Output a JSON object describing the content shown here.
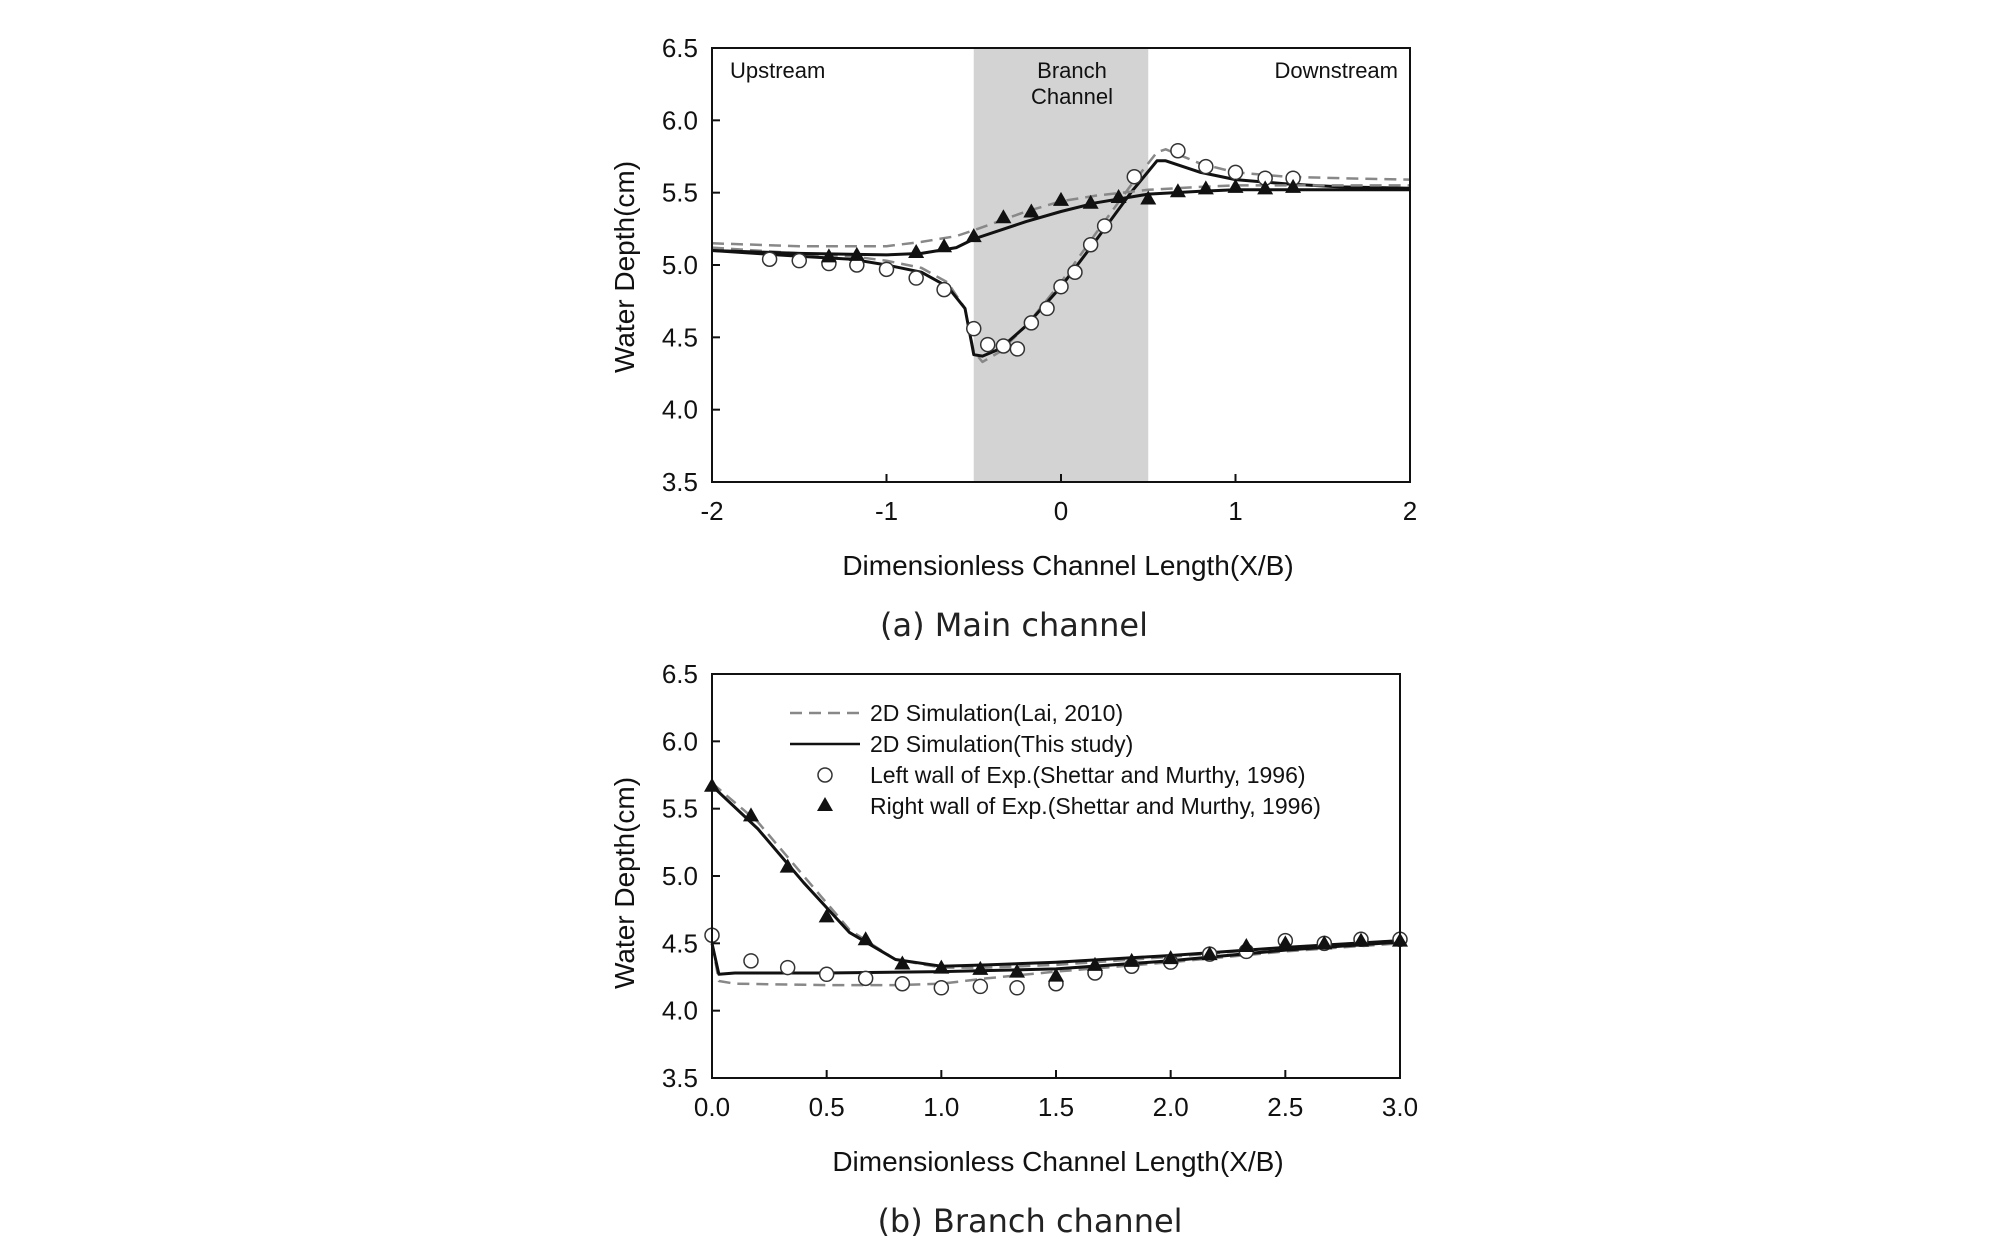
{
  "chart_data": [
    {
      "type": "line",
      "caption": "(a) Main channel",
      "xlabel": "Dimensionless Channel Length(X/B)",
      "ylabel": "Water Depth(cm)",
      "xlim": [
        -2,
        2
      ],
      "ylim": [
        3.5,
        6.5
      ],
      "xticks": [
        "-2",
        "-1",
        "0",
        "1",
        "2"
      ],
      "yticks": [
        "3.5",
        "4.0",
        "4.5",
        "5.0",
        "5.5",
        "6.0",
        "6.5"
      ],
      "shaded_region": {
        "x_range": [
          -0.5,
          0.5
        ],
        "label_line1": "Branch",
        "label_line2": "Channel",
        "color": "#d3d3d3"
      },
      "region_labels": {
        "upstream": "Upstream",
        "downstream": "Downstream"
      },
      "series": [
        {
          "name": "2D Simulation(Lai, 2010) - left wall",
          "style": "dashed",
          "color": "#888888",
          "x": [
            -2,
            -1.5,
            -1.2,
            -1.0,
            -0.8,
            -0.65,
            -0.55,
            -0.5,
            -0.45,
            -0.35,
            -0.2,
            0,
            0.2,
            0.4,
            0.55,
            0.6,
            0.8,
            1.0,
            1.3,
            1.6,
            2
          ],
          "y": [
            5.12,
            5.08,
            5.06,
            5.03,
            4.98,
            4.88,
            4.7,
            4.4,
            4.33,
            4.4,
            4.58,
            4.88,
            5.22,
            5.55,
            5.78,
            5.8,
            5.7,
            5.64,
            5.61,
            5.6,
            5.59
          ]
        },
        {
          "name": "2D Simulation(This study) - left wall",
          "style": "solid",
          "color": "#111111",
          "x": [
            -2,
            -1.5,
            -1.2,
            -1.0,
            -0.8,
            -0.65,
            -0.55,
            -0.5,
            -0.45,
            -0.35,
            -0.2,
            0,
            0.2,
            0.4,
            0.55,
            0.6,
            0.8,
            1.0,
            1.3,
            1.6,
            2
          ],
          "y": [
            5.1,
            5.06,
            5.04,
            5.0,
            4.95,
            4.85,
            4.7,
            4.38,
            4.37,
            4.42,
            4.58,
            4.85,
            5.17,
            5.5,
            5.72,
            5.72,
            5.64,
            5.59,
            5.56,
            5.54,
            5.53
          ]
        },
        {
          "name": "2D Simulation(Lai, 2010) - right wall",
          "style": "dashed",
          "color": "#888888",
          "x": [
            -2,
            -1.5,
            -1.0,
            -0.8,
            -0.6,
            -0.5,
            -0.2,
            0,
            0.2,
            0.5,
            0.8,
            1.0,
            1.5,
            2
          ],
          "y": [
            5.15,
            5.13,
            5.13,
            5.16,
            5.2,
            5.24,
            5.37,
            5.44,
            5.48,
            5.52,
            5.54,
            5.55,
            5.55,
            5.55
          ]
        },
        {
          "name": "2D Simulation(This study) - right wall",
          "style": "solid",
          "color": "#111111",
          "x": [
            -2,
            -1.5,
            -1.0,
            -0.8,
            -0.6,
            -0.5,
            -0.2,
            0,
            0.2,
            0.5,
            0.8,
            1.0,
            1.5,
            2
          ],
          "y": [
            5.1,
            5.08,
            5.07,
            5.08,
            5.12,
            5.18,
            5.3,
            5.37,
            5.43,
            5.49,
            5.51,
            5.52,
            5.52,
            5.52
          ]
        },
        {
          "name": "Left wall of Exp.(Shettar and Murthy, 1996)",
          "marker": "open-circle",
          "x": [
            -1.67,
            -1.5,
            -1.33,
            -1.17,
            -1.0,
            -0.83,
            -0.67,
            -0.5,
            -0.42,
            -0.33,
            -0.25,
            -0.17,
            -0.08,
            0,
            0.08,
            0.17,
            0.25,
            0.42,
            0.67,
            0.83,
            1.0,
            1.17,
            1.33
          ],
          "y": [
            5.04,
            5.03,
            5.01,
            5.0,
            4.97,
            4.91,
            4.83,
            4.56,
            4.45,
            4.44,
            4.42,
            4.6,
            4.7,
            4.85,
            4.95,
            5.14,
            5.27,
            5.61,
            5.79,
            5.68,
            5.64,
            5.6,
            5.6
          ]
        },
        {
          "name": "Right wall of Exp.(Shettar and Murthy, 1996)",
          "marker": "filled-triangle",
          "x": [
            -1.33,
            -1.17,
            -0.83,
            -0.67,
            -0.5,
            -0.33,
            -0.17,
            0,
            0.17,
            0.33,
            0.5,
            0.67,
            0.83,
            1.0,
            1.17,
            1.33
          ],
          "y": [
            5.06,
            5.07,
            5.09,
            5.13,
            5.2,
            5.33,
            5.37,
            5.45,
            5.43,
            5.47,
            5.46,
            5.51,
            5.53,
            5.54,
            5.53,
            5.54
          ]
        }
      ]
    },
    {
      "type": "line",
      "caption": "(b) Branch channel",
      "xlabel": "Dimensionless Channel Length(X/B)",
      "ylabel": "Water Depth(cm)",
      "xlim": [
        0,
        3
      ],
      "ylim": [
        3.5,
        6.5
      ],
      "xticks": [
        "0.0",
        "0.5",
        "1.0",
        "1.5",
        "2.0",
        "2.5",
        "3.0"
      ],
      "yticks": [
        "3.5",
        "4.0",
        "4.5",
        "5.0",
        "5.5",
        "6.0",
        "6.5"
      ],
      "legend": {
        "position": "top-left",
        "entries": [
          "2D Simulation(Lai, 2010)",
          "2D Simulation(This study)",
          "Left wall of Exp.(Shettar and Murthy, 1996)",
          "Right wall of Exp.(Shettar and Murthy, 1996)"
        ]
      },
      "series": [
        {
          "name": "2D Simulation(Lai, 2010) - left wall",
          "style": "dashed",
          "color": "#888888",
          "x": [
            0,
            0.03,
            0.1,
            0.5,
            0.8,
            1.0,
            1.2,
            1.5,
            2.0,
            2.5,
            3.0
          ],
          "y": [
            4.5,
            4.22,
            4.2,
            4.19,
            4.19,
            4.2,
            4.24,
            4.29,
            4.36,
            4.44,
            4.5
          ]
        },
        {
          "name": "2D Simulation(This study) - left wall",
          "style": "solid",
          "color": "#111111",
          "x": [
            0,
            0.03,
            0.1,
            0.5,
            1.0,
            1.5,
            2.0,
            2.5,
            3.0
          ],
          "y": [
            4.5,
            4.27,
            4.28,
            4.28,
            4.29,
            4.31,
            4.37,
            4.45,
            4.51
          ]
        },
        {
          "name": "2D Simulation(Lai, 2010) - right wall",
          "style": "dashed",
          "color": "#888888",
          "x": [
            0,
            0.2,
            0.4,
            0.6,
            0.8,
            1.0,
            1.2,
            1.5,
            2.0,
            2.5,
            3.0
          ],
          "y": [
            5.69,
            5.4,
            5.0,
            4.6,
            4.38,
            4.32,
            4.32,
            4.34,
            4.4,
            4.47,
            4.52
          ]
        },
        {
          "name": "2D Simulation(This study) - right wall",
          "style": "solid",
          "color": "#111111",
          "x": [
            0,
            0.2,
            0.4,
            0.6,
            0.8,
            1.0,
            1.2,
            1.5,
            2.0,
            2.5,
            3.0
          ],
          "y": [
            5.67,
            5.35,
            4.95,
            4.58,
            4.38,
            4.33,
            4.34,
            4.36,
            4.41,
            4.47,
            4.52
          ]
        },
        {
          "name": "Left wall of Exp.(Shettar and Murthy, 1996)",
          "marker": "open-circle",
          "x": [
            0,
            0.17,
            0.33,
            0.5,
            0.67,
            0.83,
            1.0,
            1.17,
            1.33,
            1.5,
            1.67,
            1.83,
            2.0,
            2.17,
            2.33,
            2.5,
            2.67,
            2.83,
            3.0
          ],
          "y": [
            4.56,
            4.37,
            4.32,
            4.27,
            4.24,
            4.2,
            4.17,
            4.18,
            4.17,
            4.2,
            4.28,
            4.33,
            4.36,
            4.42,
            4.44,
            4.52,
            4.5,
            4.53,
            4.53
          ]
        },
        {
          "name": "Right wall of Exp.(Shettar and Murthy, 1996)",
          "marker": "filled-triangle",
          "x": [
            0,
            0.17,
            0.33,
            0.5,
            0.67,
            0.83,
            1.0,
            1.17,
            1.33,
            1.5,
            1.67,
            1.83,
            2.0,
            2.17,
            2.33,
            2.5,
            2.67,
            2.83,
            3.0
          ],
          "y": [
            5.67,
            5.45,
            5.07,
            4.7,
            4.53,
            4.35,
            4.32,
            4.31,
            4.29,
            4.26,
            4.34,
            4.37,
            4.39,
            4.42,
            4.48,
            4.5,
            4.5,
            4.52,
            4.52
          ]
        }
      ]
    }
  ]
}
